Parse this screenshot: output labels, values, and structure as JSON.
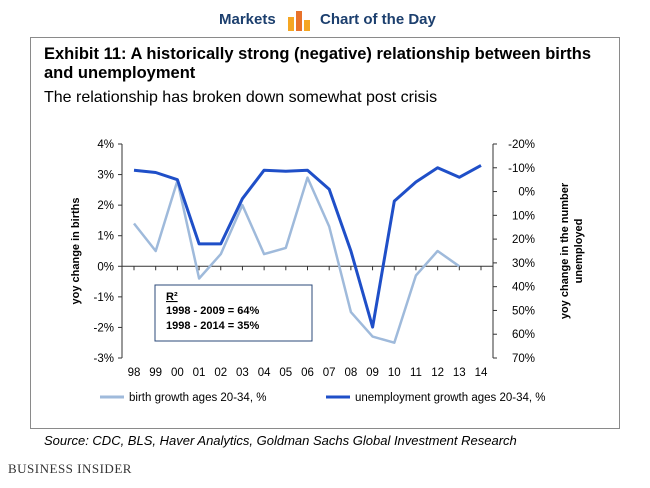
{
  "banner": {
    "left": "Markets",
    "right": "Chart of the Day",
    "icon": "bar-chart-icon"
  },
  "title": "Exhibit 11: A historically strong (negative) relationship between births and unemployment",
  "subtitle": "The relationship has broken down somewhat post crisis",
  "source": "Source: CDC, BLS, Haver Analytics, Goldman Sachs Global Investment Research",
  "brand": "BUSINESS INSIDER",
  "colors": {
    "births": "#9fbadb",
    "unemployment": "#1f4fc8",
    "header": "#1c3f6e",
    "frame": "#8a8a8a"
  },
  "chart_data": {
    "type": "line",
    "categories": [
      "98",
      "99",
      "00",
      "01",
      "02",
      "03",
      "04",
      "05",
      "06",
      "07",
      "08",
      "09",
      "10",
      "11",
      "12",
      "13",
      "14"
    ],
    "ylabel": "yoy change in births",
    "y2label": "yoy change in the number unemployed",
    "ylim": [
      -3,
      4
    ],
    "yticks": [
      "4%",
      "3%",
      "2%",
      "1%",
      "0%",
      "-1%",
      "-2%",
      "-3%"
    ],
    "y2lim": [
      -20,
      70
    ],
    "y2reversed": true,
    "y2ticks": [
      "-20%",
      "-10%",
      "0%",
      "10%",
      "20%",
      "30%",
      "40%",
      "50%",
      "60%",
      "70%"
    ],
    "grid": false,
    "legend_position": "bottom",
    "series": [
      {
        "name": "birth growth ages 20-34, %",
        "axis": "left",
        "color": "#9fbadb",
        "values": [
          1.4,
          0.5,
          2.8,
          -0.4,
          0.4,
          2.0,
          0.4,
          0.6,
          2.9,
          1.3,
          -1.5,
          -2.3,
          -2.5,
          -0.3,
          0.5,
          0.0,
          null
        ]
      },
      {
        "name": "unemployment growth ages 20-34, %",
        "axis": "right",
        "color": "#1f4fc8",
        "values": [
          -9,
          -8,
          -5,
          22,
          22,
          3,
          -9,
          -8.5,
          -9,
          -1,
          25,
          57,
          4,
          -4,
          -10,
          -6,
          -11
        ]
      }
    ],
    "annotation": {
      "title": "R²",
      "lines": [
        "1998 - 2009 = 64%",
        "1998 - 2014 = 35%"
      ]
    }
  }
}
